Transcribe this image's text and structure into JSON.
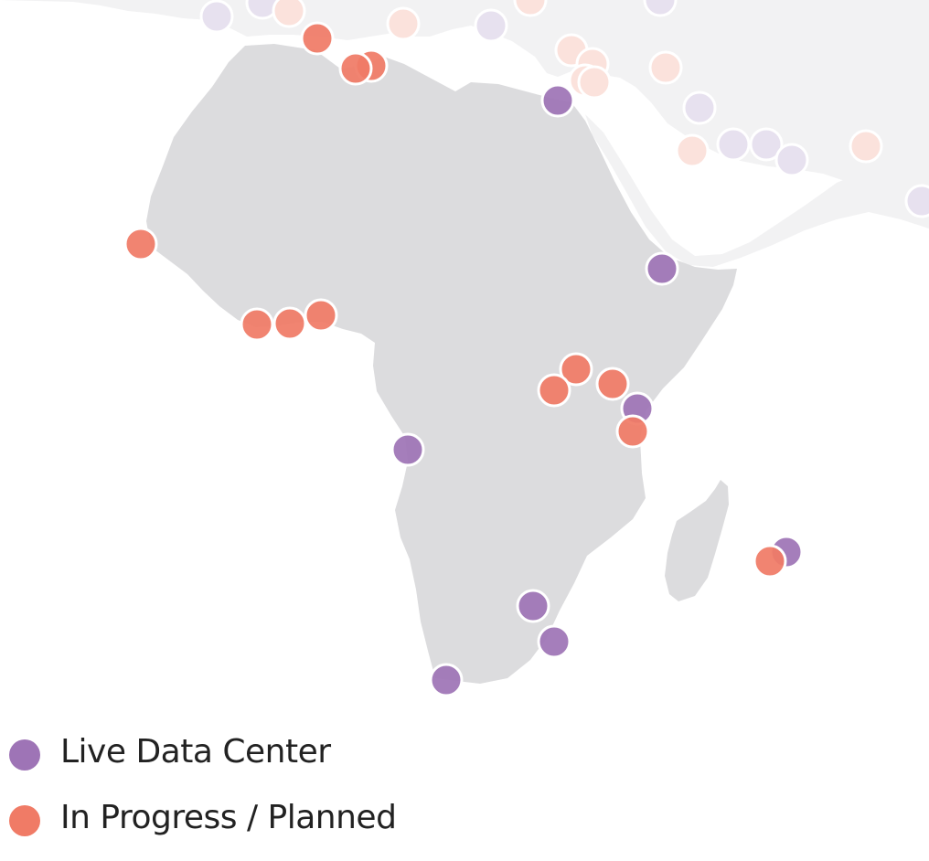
{
  "map": {
    "colors": {
      "land_focus": "#dcdcde",
      "land_faded": "#f2f2f3",
      "live": "#9e74b6",
      "live_faded": "#e7e1ef",
      "planned": "#f07b66",
      "planned_faded": "#fbe2dc",
      "marker_stroke": "#ffffff"
    },
    "markers_visible": {
      "live_data_center": 12,
      "in_progress_planned": 24
    }
  },
  "legend": {
    "items": [
      {
        "label": "Live Data Center",
        "color": "#9e74b6"
      },
      {
        "label": "In Progress / Planned",
        "color": "#f07b66"
      }
    ]
  }
}
